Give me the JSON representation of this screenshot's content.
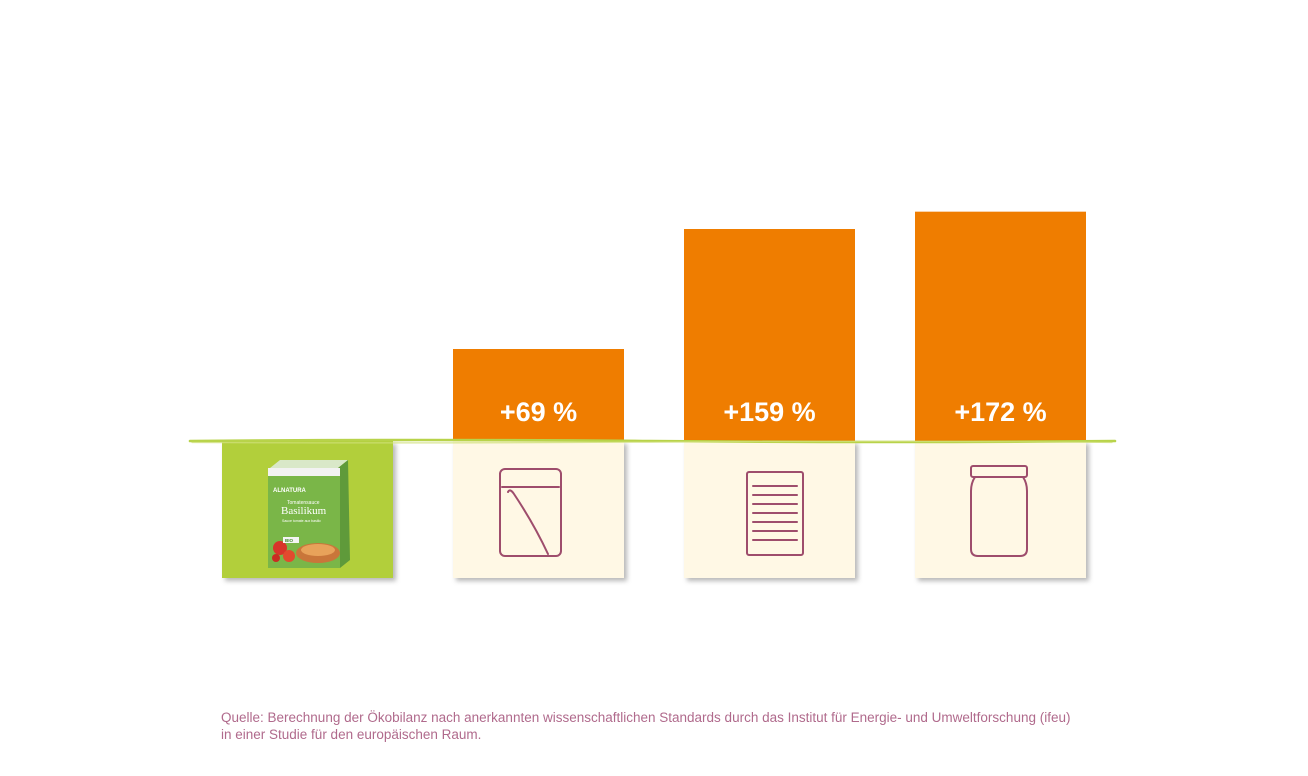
{
  "chart_data": {
    "type": "bar",
    "categories": [
      "tetra-pak",
      "pouch",
      "can",
      "glass-jar"
    ],
    "values": [
      0,
      69,
      159,
      172
    ],
    "value_labels": [
      "",
      "+69 %",
      "+159 %",
      "+172 %"
    ],
    "unit": "%",
    "ylim": [
      0,
      180
    ],
    "grid": false,
    "legend": "none"
  },
  "product": {
    "brand": "ALNATURA",
    "line": "Tomatensauce",
    "name": "Basilikum",
    "subtitle": "Sauce tomate aux basilic",
    "badge": "BIO"
  },
  "colors": {
    "bar": "#ef7d00",
    "baseline": "#b8d34a",
    "reference_tile": "#b2cf3a",
    "icon_tile": "#fff8e5",
    "icon_stroke": "#9e4d6c",
    "source_text": "#b06a8c"
  },
  "source": {
    "line1": "Quelle: Berechnung der Ökobilanz nach anerkannten wissenschaftlichen Standards durch das Institut für Energie- und Umweltforschung (ifeu)",
    "line2": "in einer Studie für den europäischen Raum."
  }
}
